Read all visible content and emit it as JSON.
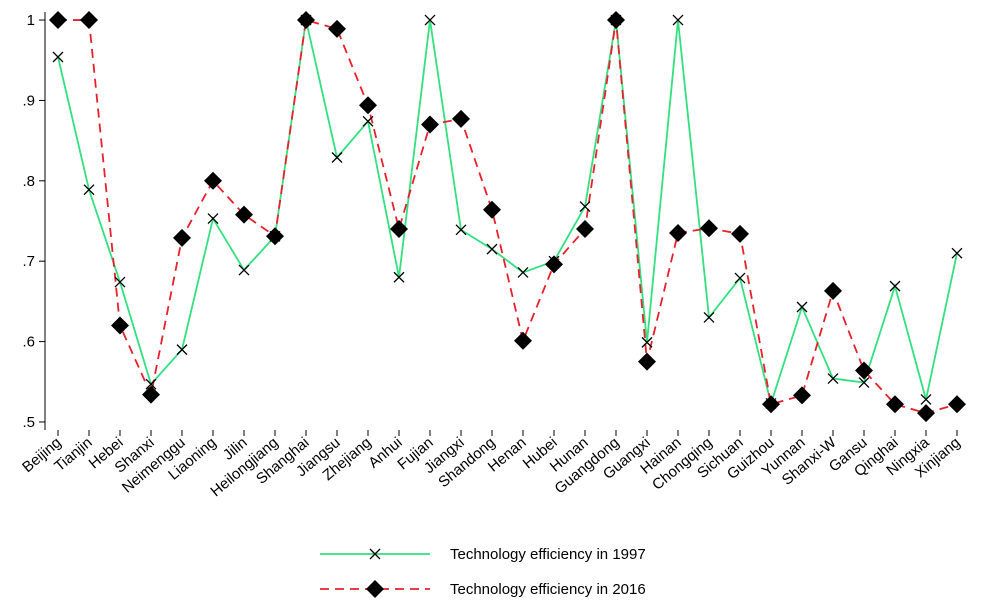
{
  "chart_data": {
    "type": "line",
    "categories": [
      "Beijing",
      "Tianjin",
      "Hebei",
      "Shanxi",
      "Neimenggu",
      "Liaoning",
      "Jilin",
      "Heilongjiang",
      "Shanghai",
      "Jiangsu",
      "Zhejiang",
      "Anhui",
      "Fujian",
      "Jiangxi",
      "Shandong",
      "Henan",
      "Hubei",
      "Hunan",
      "Guangdong",
      "Guangxi",
      "Hainan",
      "Chongqing",
      "Sichuan",
      "Guizhou",
      "Yunnan",
      "Shanxi-W",
      "Gansu",
      "Qinghai",
      "Ningxia",
      "Xinjiang"
    ],
    "series": [
      {
        "name": "Technology efficiency in 1997",
        "color": "#33e07f",
        "marker": "x",
        "dash": false,
        "values": [
          0.954,
          0.789,
          0.674,
          0.547,
          0.59,
          0.753,
          0.689,
          0.731,
          1,
          0.829,
          0.874,
          0.68,
          1,
          0.739,
          0.715,
          0.686,
          0.7,
          0.768,
          1,
          0.599,
          1,
          0.63,
          0.679,
          0.523,
          0.643,
          0.554,
          0.549,
          0.669,
          0.528,
          0.71
        ]
      },
      {
        "name": "Technology efficiency in 2016",
        "color": "#e8202a",
        "marker": "diamond",
        "dash": true,
        "values": [
          1,
          1,
          0.62,
          0.534,
          0.729,
          0.8,
          0.758,
          0.731,
          1,
          0.989,
          0.894,
          0.74,
          0.87,
          0.877,
          0.764,
          0.601,
          0.696,
          0.74,
          1,
          0.575,
          0.735,
          0.741,
          0.734,
          0.522,
          0.533,
          0.663,
          0.564,
          0.522,
          0.511,
          0.522
        ]
      }
    ],
    "ylim": [
      0.49,
      1.01
    ],
    "yticks": [
      {
        "value": 0.5,
        "label": ".5"
      },
      {
        "value": 0.6,
        "label": ".6"
      },
      {
        "value": 0.7,
        "label": ".7"
      },
      {
        "value": 0.8,
        "label": ".8"
      },
      {
        "value": 0.9,
        "label": ".9"
      },
      1
    ]
  }
}
